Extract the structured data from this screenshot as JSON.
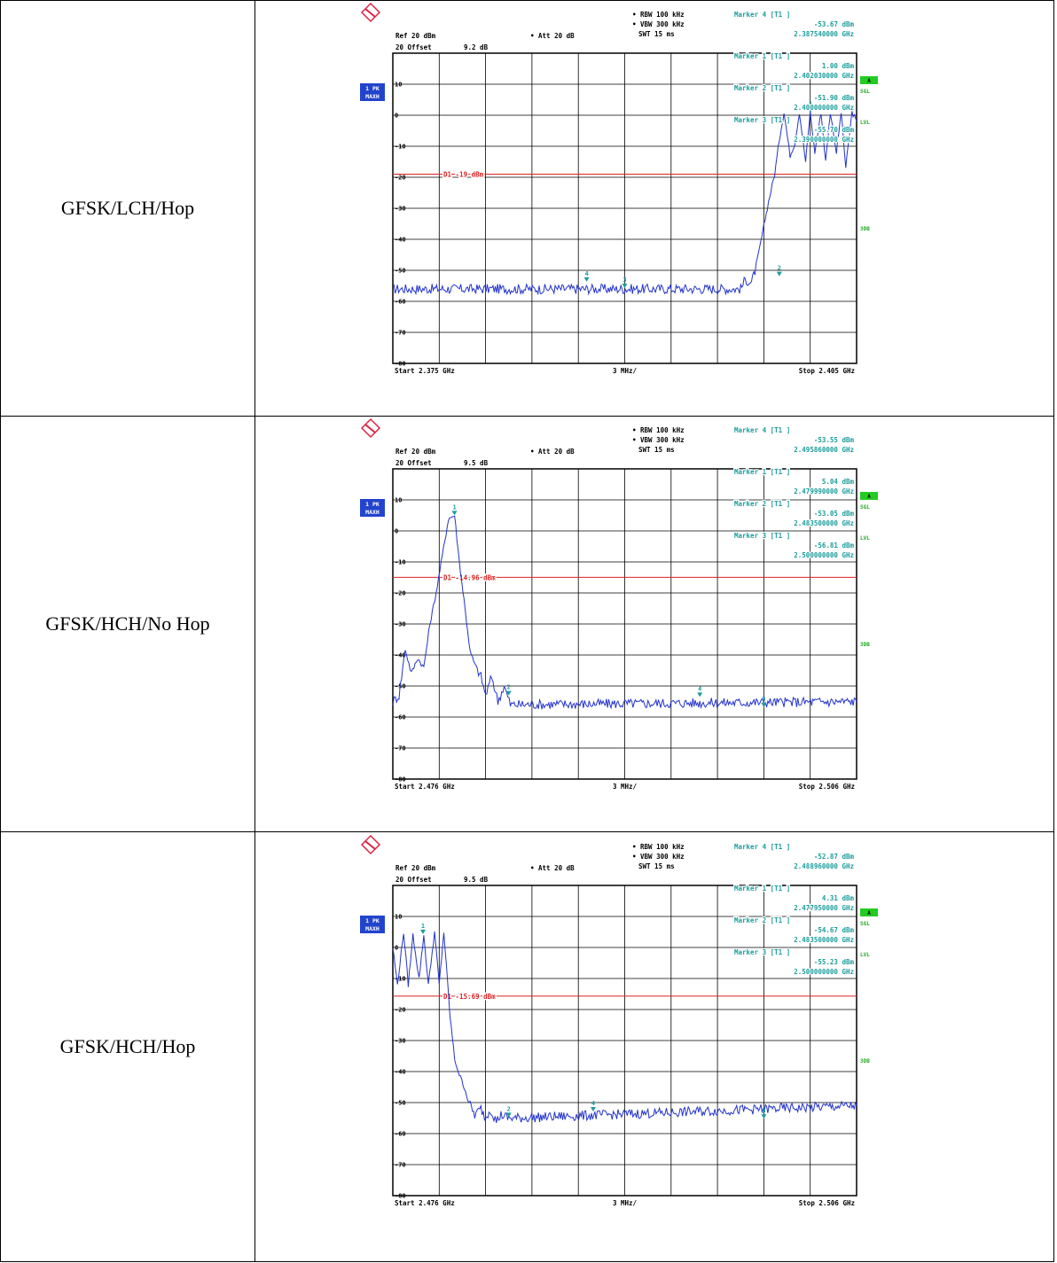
{
  "rows": [
    {
      "label": "GFSK/LCH/Hop",
      "settings": {
        "rbw": "RBW 100 kHz",
        "vbw": "VBW 300 kHz",
        "swt": "SWT 15 ms",
        "ref": "Ref 20 dBm",
        "att": "Att 20 dB",
        "offset_label": "Offset",
        "offset_value": "9.2 dB"
      },
      "markers": [
        {
          "title": "Marker 4 [T1 ]",
          "level": "-53.67 dBm",
          "freq": "2.387540000 GHz"
        },
        {
          "title": "Marker 1 [T1 ]",
          "level": "1.00 dBm",
          "freq": "2.402030000 GHz"
        },
        {
          "title": "Marker 2 [T1 ]",
          "level": "-51.90 dBm",
          "freq": "2.400000000 GHz"
        },
        {
          "title": "Marker 3 [T1 ]",
          "level": "-55.70 dBm",
          "freq": "2.390000000 GHz"
        }
      ],
      "display_line_label": "D1 -19 dBm",
      "trace_badge": [
        "1 PK",
        "MAXH"
      ],
      "right_annotations": [
        "A",
        "SGL",
        "LVL",
        "3DB"
      ],
      "x_start": "Start 2.375 GHz",
      "x_div": "3 MHz/",
      "x_stop": "Stop 2.405 GHz"
    },
    {
      "label": "GFSK/HCH/No Hop",
      "settings": {
        "rbw": "RBW 100 kHz",
        "vbw": "VBW 300 kHz",
        "swt": "SWT 15 ms",
        "ref": "Ref 20 dBm",
        "att": "Att 20 dB",
        "offset_label": "Offset",
        "offset_value": "9.5 dB"
      },
      "markers": [
        {
          "title": "Marker 4 [T1 ]",
          "level": "-53.55 dBm",
          "freq": "2.495860000 GHz"
        },
        {
          "title": "Marker 1 [T1 ]",
          "level": "5.04 dBm",
          "freq": "2.479990000 GHz"
        },
        {
          "title": "Marker 2 [T1 ]",
          "level": "-53.05 dBm",
          "freq": "2.483500000 GHz"
        },
        {
          "title": "Marker 3 [T1 ]",
          "level": "-56.81 dBm",
          "freq": "2.500000000 GHz"
        }
      ],
      "display_line_label": "D1 -14.96 dBm",
      "trace_badge": [
        "1 PK",
        "MAXH"
      ],
      "right_annotations": [
        "A",
        "SGL",
        "LVL",
        "3DB"
      ],
      "x_start": "Start 2.476 GHz",
      "x_div": "3 MHz/",
      "x_stop": "Stop 2.506 GHz"
    },
    {
      "label": "GFSK/HCH/Hop",
      "settings": {
        "rbw": "RBW 100 kHz",
        "vbw": "VBW 300 kHz",
        "swt": "SWT 15 ms",
        "ref": "Ref 20 dBm",
        "att": "Att 20 dB",
        "offset_label": "Offset",
        "offset_value": "9.5 dB"
      },
      "markers": [
        {
          "title": "Marker 4 [T1 ]",
          "level": "-52.87 dBm",
          "freq": "2.488960000 GHz"
        },
        {
          "title": "Marker 1 [T1 ]",
          "level": "4.31 dBm",
          "freq": "2.477950000 GHz"
        },
        {
          "title": "Marker 2 [T1 ]",
          "level": "-54.67 dBm",
          "freq": "2.483500000 GHz"
        },
        {
          "title": "Marker 3 [T1 ]",
          "level": "-55.23 dBm",
          "freq": "2.500000000 GHz"
        }
      ],
      "display_line_label": "D1 -15.69 dBm",
      "trace_badge": [
        "1 PK",
        "MAXH"
      ],
      "right_annotations": [
        "A",
        "SGL",
        "LVL",
        "3DB"
      ],
      "x_start": "Start 2.476 GHz",
      "x_div": "3 MHz/",
      "x_stop": "Stop 2.506 GHz"
    }
  ],
  "chart_data": [
    {
      "type": "line",
      "title": "",
      "xlabel": "",
      "ylabel": "",
      "x_unit": "GHz",
      "y_unit": "dBm",
      "xlim": [
        2.375,
        2.405
      ],
      "ylim": [
        -80,
        20
      ],
      "y_ticks": [
        20,
        10,
        0,
        -10,
        -20,
        -30,
        -40,
        -50,
        -60,
        -70,
        -80
      ],
      "grid": true,
      "display_line_dbm": -19,
      "markers": [
        {
          "id": "1",
          "x": 2.40203,
          "y": 1.0
        },
        {
          "id": "2",
          "x": 2.4,
          "y": -51.9
        },
        {
          "id": "3",
          "x": 2.39,
          "y": -55.7
        },
        {
          "id": "4",
          "x": 2.38754,
          "y": -53.67
        }
      ],
      "series": [
        {
          "x": [
            2.375,
            2.3975,
            2.3978,
            2.3982,
            2.3985,
            2.3988,
            2.3993,
            2.3997,
            2.4,
            2.4003,
            2.4007,
            2.401,
            2.4013,
            2.4017,
            2.402,
            2.4023,
            2.4027,
            2.403,
            2.4033,
            2.4037,
            2.404,
            2.4043,
            2.4047,
            2.405
          ],
          "y": [
            -56,
            -56,
            -53,
            -54,
            -49,
            -41,
            -28,
            -19,
            -8,
            1,
            -13,
            -9,
            1,
            -15,
            1,
            -12,
            1,
            -15,
            1,
            -12,
            1,
            -17,
            1,
            -2
          ]
        }
      ]
    },
    {
      "type": "line",
      "title": "",
      "xlabel": "",
      "ylabel": "",
      "x_unit": "GHz",
      "y_unit": "dBm",
      "xlim": [
        2.476,
        2.506
      ],
      "ylim": [
        -80,
        20
      ],
      "y_ticks": [
        20,
        10,
        0,
        -10,
        -20,
        -30,
        -40,
        -50,
        -60,
        -70,
        -80
      ],
      "grid": true,
      "display_line_dbm": -14.96,
      "markers": [
        {
          "id": "1",
          "x": 2.47999,
          "y": 5.04
        },
        {
          "id": "2",
          "x": 2.4835,
          "y": -53.05
        },
        {
          "id": "3",
          "x": 2.5,
          "y": -56.81
        },
        {
          "id": "4",
          "x": 2.49586,
          "y": -53.55
        }
      ],
      "series": [
        {
          "x": [
            2.476,
            2.4764,
            2.4768,
            2.4772,
            2.4776,
            2.478,
            2.4784,
            2.4788,
            2.4792,
            2.4796,
            2.48,
            2.4803,
            2.4806,
            2.481,
            2.4813,
            2.4817,
            2.482,
            2.4824,
            2.4828,
            2.4832,
            2.4836,
            2.484,
            2.506
          ],
          "y": [
            -55,
            -53,
            -38,
            -46,
            -41,
            -44,
            -30,
            -20,
            -8,
            4,
            5,
            -10,
            -22,
            -39,
            -43,
            -47,
            -53,
            -47,
            -55,
            -50,
            -56,
            -56,
            -55
          ]
        }
      ]
    },
    {
      "type": "line",
      "title": "",
      "xlabel": "",
      "ylabel": "",
      "x_unit": "GHz",
      "y_unit": "dBm",
      "xlim": [
        2.476,
        2.506
      ],
      "ylim": [
        -80,
        20
      ],
      "y_ticks": [
        20,
        10,
        0,
        -10,
        -20,
        -30,
        -40,
        -50,
        -60,
        -70,
        -80
      ],
      "grid": true,
      "display_line_dbm": -15.69,
      "markers": [
        {
          "id": "1",
          "x": 2.47795,
          "y": 4.31
        },
        {
          "id": "2",
          "x": 2.4835,
          "y": -54.67
        },
        {
          "id": "3",
          "x": 2.5,
          "y": -55.23
        },
        {
          "id": "4",
          "x": 2.48896,
          "y": -52.87
        }
      ],
      "series": [
        {
          "x": [
            2.476,
            2.4763,
            2.4767,
            2.477,
            2.4773,
            2.4777,
            2.478,
            2.4783,
            2.4787,
            2.479,
            2.4793,
            2.4797,
            2.48,
            2.4803,
            2.4807,
            2.481,
            2.4813,
            2.4817,
            2.482,
            2.4823,
            2.4827,
            2.483,
            2.4835,
            2.484,
            2.506
          ],
          "y": [
            0,
            -12,
            5,
            -12,
            4,
            -10,
            4,
            -12,
            5,
            -12,
            5,
            -22,
            -36,
            -41,
            -46,
            -51,
            -54,
            -52,
            -55,
            -52,
            -56,
            -54,
            -55,
            -55,
            -51
          ]
        }
      ]
    }
  ]
}
